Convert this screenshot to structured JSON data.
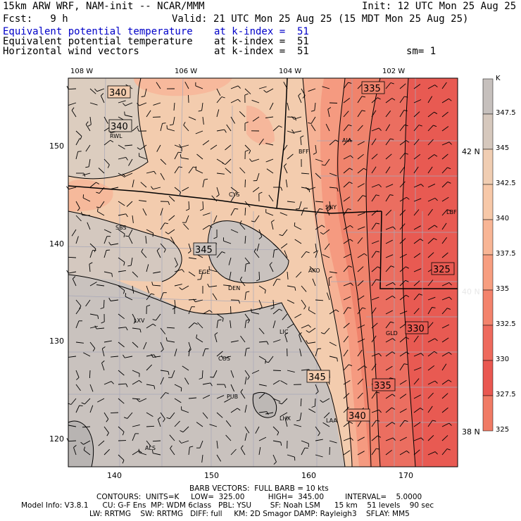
{
  "header": {
    "model_line": "15km ARW WRF, NAM-init -- NCAR/MMM",
    "init": "Init: 12 UTC Mon 25 Aug 25",
    "fcst": "Fcst:   9 h",
    "valid": "Valid: 21 UTC Mon 25 Aug 25 (15 MDT Mon 25 Aug 25)",
    "field1_name": "Equivalent potential temperature",
    "field1_level": "at k-index =  51",
    "field2_name": "Equivalent potential temperature",
    "field2_level": "at k-index =  51",
    "field3_name": "Horizontal wind vectors",
    "field3_level": "at k-index =  51",
    "smooth": "sm= 1"
  },
  "map": {
    "top_lon_labels": [
      "108 W",
      "106 W",
      "104 W",
      "102 W"
    ],
    "right_lat_labels": [
      "42 N",
      "40 N",
      "38 N"
    ],
    "left_y_ticks": [
      "150",
      "140",
      "130",
      "120"
    ],
    "bottom_x_ticks": [
      "140",
      "150",
      "160",
      "170"
    ],
    "cities": [
      "RWL",
      "BFF",
      "AIA",
      "CYS",
      "SNY",
      "SBS",
      "LBF",
      "EGE",
      "DEN",
      "AKO",
      "LXV",
      "LIC",
      "GLD",
      "COS",
      "PUB",
      "LHX",
      "LAA",
      "ALS"
    ],
    "contour_labels": [
      "340",
      "340",
      "335",
      "345",
      "325",
      "330",
      "345",
      "335",
      "340"
    ]
  },
  "colorbar": {
    "unit": "K",
    "labels": [
      "347.5",
      "345",
      "342.5",
      "340",
      "337.5",
      "335",
      "332.5",
      "330",
      "327.5",
      "325"
    ],
    "colors": [
      "#c6c0bd",
      "#d6c8bd",
      "#f0cdb2",
      "#f7c8a8",
      "#f8b595",
      "#f79e80",
      "#f3836c",
      "#ee6a5d",
      "#e95851",
      "#f07b65"
    ]
  },
  "footer": {
    "barb": "BARB VECTORS:  FULL BARB = 10 kts",
    "contours": "CONTOURS:  UNITS=K     LOW=  325.00          HIGH=  345.00         INTERVAL=    5.0000",
    "model_info": "Model Info: V3.8.1      CU: G-F Ens  MP: WDM 6class   PBL: YSU        SF: Noah LSM      15 km    51 levels    90 sec",
    "physics": "LW: RRTMG    SW: RRTMG   DIFF: full     KM: 2D Smagor DAMP: Rayleigh3    SFLAY: MM5"
  }
}
